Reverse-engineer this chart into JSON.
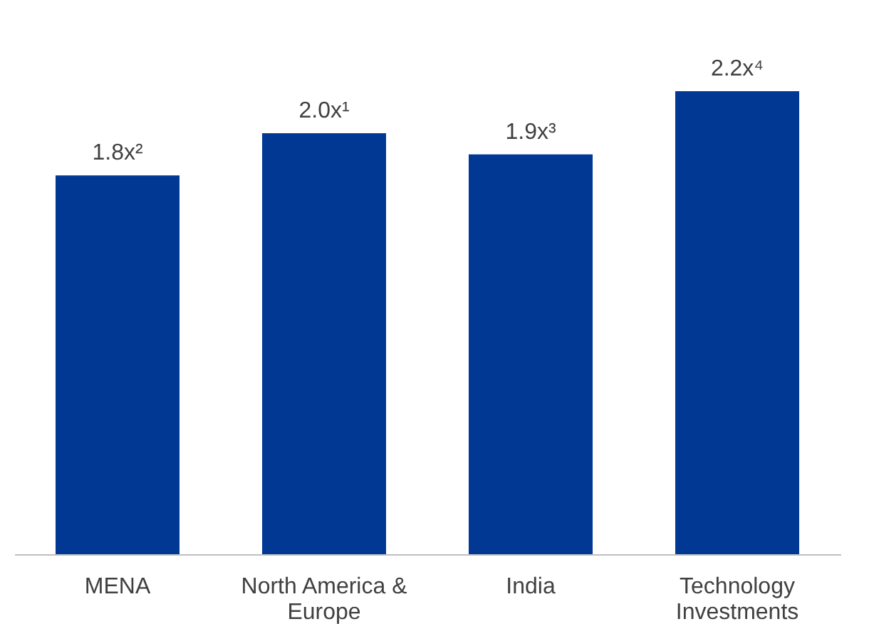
{
  "chart_data": {
    "type": "bar",
    "categories": [
      "MENA",
      "North America & Europe",
      "India",
      "Technology Investments"
    ],
    "values": [
      1.8,
      2.0,
      1.9,
      2.2
    ],
    "value_labels": [
      "1.8x²",
      "2.0x¹",
      "1.9x³",
      "2.2x⁴"
    ],
    "color": "#003893"
  }
}
